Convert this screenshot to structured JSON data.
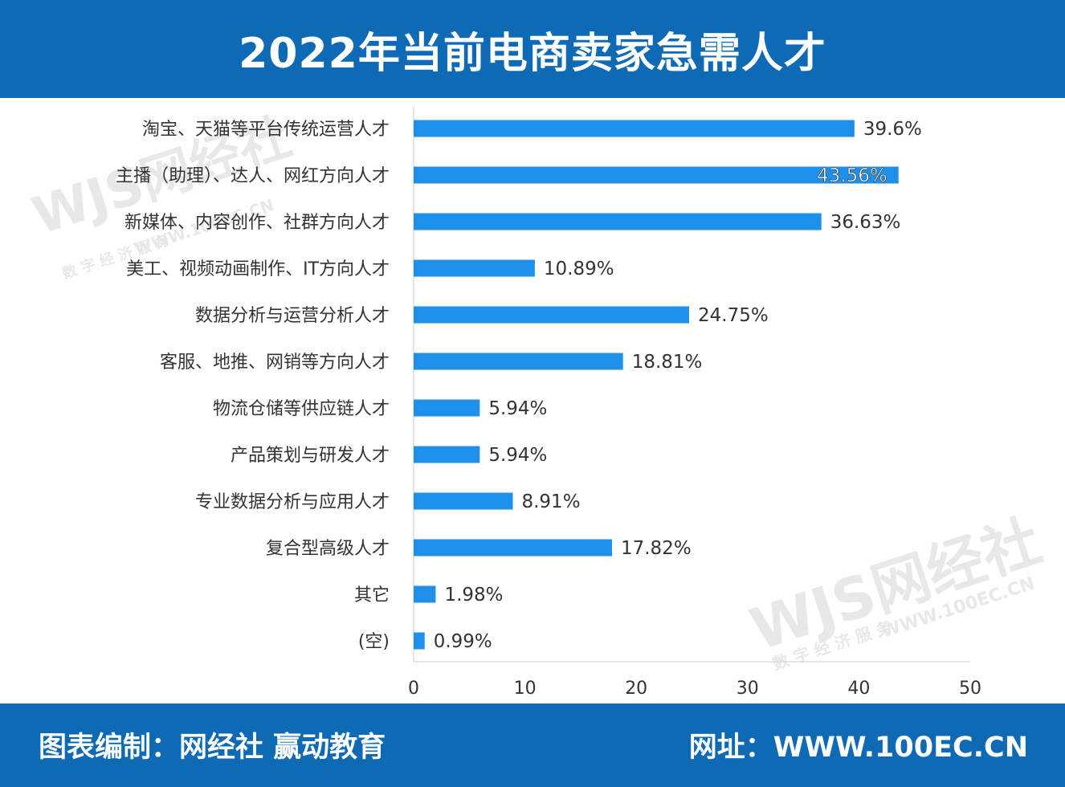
{
  "header": {
    "title": "2022年当前电商卖家急需人才"
  },
  "footer": {
    "credit": "图表编制：网经社 赢动教育",
    "site": "网址：WWW.100EC.CN"
  },
  "watermark": {
    "logo": "WJS网经社",
    "url": "WWW.100EC.CN",
    "slogan": "数 字 经 济 服 务"
  },
  "colors": {
    "bar": "#1e90ea",
    "header_bg": "#0f6ab5",
    "axis": "#cccccc"
  },
  "chart_data": {
    "type": "bar",
    "orientation": "horizontal",
    "title": "2022年当前电商卖家急需人才",
    "categories": [
      "淘宝、天猫等平台传统运营人才",
      "主播（助理）、达人、网红方向人才",
      "新媒体、内容创作、社群方向人才",
      "美工、视频动画制作、IT方向人才",
      "数据分析与运营分析人才",
      "客服、地推、网销等方向人才",
      "物流仓储等供应链人才",
      "产品策划与研发人才",
      "专业数据分析与应用人才",
      "复合型高级人才",
      "其它",
      "(空)"
    ],
    "values": [
      39.6,
      43.56,
      36.63,
      10.89,
      24.75,
      18.81,
      5.94,
      5.94,
      8.91,
      17.82,
      1.98,
      0.99
    ],
    "value_labels": [
      "39.6%",
      "43.56%",
      "36.63%",
      "10.89%",
      "24.75%",
      "18.81%",
      "5.94%",
      "5.94%",
      "8.91%",
      "17.82%",
      "1.98%",
      "0.99%"
    ],
    "xlim": [
      0,
      50
    ],
    "xticks": [
      "0",
      "10",
      "20",
      "30",
      "40",
      "50"
    ],
    "xlabel": "",
    "ylabel": "",
    "grid": false
  }
}
